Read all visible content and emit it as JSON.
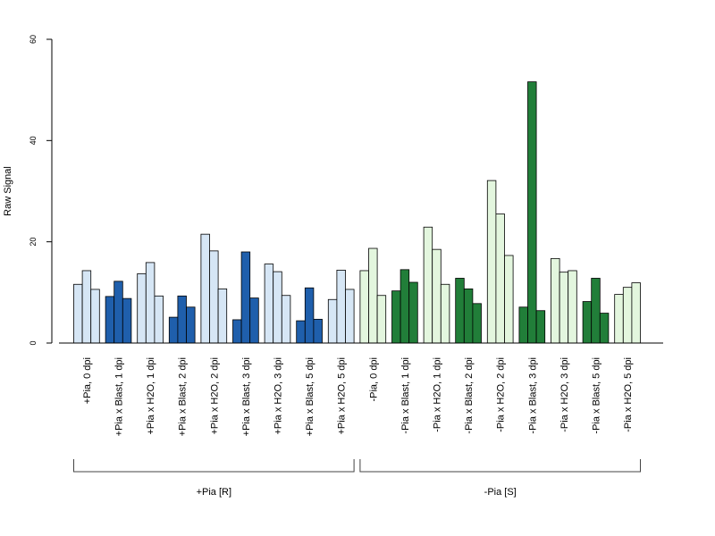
{
  "chart_data": {
    "type": "bar",
    "ylabel": "Raw Signal",
    "ylim": [
      0,
      60
    ],
    "yticks": [
      0,
      20,
      40,
      60
    ],
    "colors": {
      "plus_light": "#d6e6f5",
      "plus_dark": "#1f5fac",
      "minus_light": "#e3f6de",
      "minus_dark": "#217e39",
      "border": "#000000"
    },
    "categories": [
      {
        "label": "+Pia, 0 dpi",
        "values": [
          11.6,
          14.3,
          10.6
        ],
        "color": "plus_light"
      },
      {
        "label": "+Pia x Blast, 1 dpi",
        "values": [
          9.2,
          12.2,
          8.8
        ],
        "color": "plus_dark"
      },
      {
        "label": "+Pia x H2O, 1 dpi",
        "values": [
          13.7,
          15.9,
          9.3
        ],
        "color": "plus_light"
      },
      {
        "label": "+Pia x Blast, 2 dpi",
        "values": [
          5.1,
          9.3,
          7.1
        ],
        "color": "plus_dark"
      },
      {
        "label": "+Pia x H2O, 2 dpi",
        "values": [
          21.5,
          18.2,
          10.7
        ],
        "color": "plus_light"
      },
      {
        "label": "+Pia x Blast, 3 dpi",
        "values": [
          4.6,
          18.0,
          8.9
        ],
        "color": "plus_dark"
      },
      {
        "label": "+Pia x H2O, 3 dpi",
        "values": [
          15.6,
          14.1,
          9.4
        ],
        "color": "plus_light"
      },
      {
        "label": "+Pia x Blast, 5 dpi",
        "values": [
          4.4,
          10.9,
          4.7
        ],
        "color": "plus_dark"
      },
      {
        "label": "+Pia x H2O, 5 dpi",
        "values": [
          8.6,
          14.4,
          10.6
        ],
        "color": "plus_light"
      },
      {
        "label": "-Pia, 0 dpi",
        "values": [
          14.3,
          18.7,
          9.4
        ],
        "color": "minus_light"
      },
      {
        "label": "-Pia x Blast, 1 dpi",
        "values": [
          10.3,
          14.5,
          12.0
        ],
        "color": "minus_dark"
      },
      {
        "label": "-Pia x H2O, 1 dpi",
        "values": [
          22.9,
          18.5,
          11.6
        ],
        "color": "minus_light"
      },
      {
        "label": "-Pia x Blast, 2 dpi",
        "values": [
          12.8,
          10.7,
          7.8
        ],
        "color": "minus_dark"
      },
      {
        "label": "-Pia x H2O, 2 dpi",
        "values": [
          32.1,
          25.5,
          17.3
        ],
        "color": "minus_light"
      },
      {
        "label": "-Pia x Blast, 3 dpi",
        "values": [
          7.1,
          51.6,
          6.4
        ],
        "color": "minus_dark"
      },
      {
        "label": "-Pia x H2O, 3 dpi",
        "values": [
          16.7,
          14.0,
          14.3
        ],
        "color": "minus_light"
      },
      {
        "label": "-Pia x Blast, 5 dpi",
        "values": [
          8.2,
          12.8,
          5.9
        ],
        "color": "minus_dark"
      },
      {
        "label": "-Pia x H2O, 5 dpi",
        "values": [
          9.6,
          11.0,
          11.9
        ],
        "color": "minus_light"
      }
    ],
    "groups": [
      {
        "label": "+Pia [R]",
        "from": 0,
        "to": 8
      },
      {
        "label": "-Pia [S]",
        "from": 9,
        "to": 17
      }
    ]
  }
}
